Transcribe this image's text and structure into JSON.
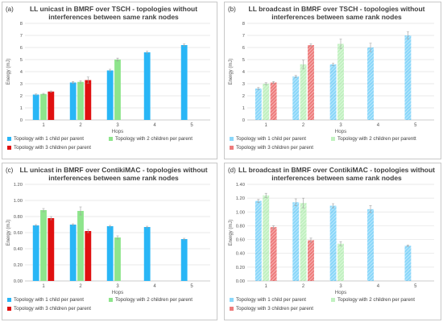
{
  "panels": {
    "a": {
      "tag": "(a)",
      "title": "LL unicast in BMRF over TSCH - topologies without interferences between same rank nodes",
      "legend": [
        "Topology with 1 child per parent",
        "Topology with 2 children per parent",
        "Topology with 3 children per parent"
      ]
    },
    "b": {
      "tag": "(b)",
      "title": "LL broadcast in BMRF over TSCH - topologies without interferences between same rank nodes",
      "legend": [
        "Topology with 1 child per parent",
        "Topology with 2 children per parentt",
        "Topology with 3 children per parent"
      ]
    },
    "c": {
      "tag": "(c)",
      "title": "LL unicast in BMRF over ContikiMAC - topologies without interferences between same rank nodes",
      "legend": [
        "Topology with 1 child per parent",
        "Topology with 2 children per parent",
        "Topology with 3 children per parent"
      ]
    },
    "d": {
      "tag": "(d)",
      "title": "LL broadcast in BMRF over ContikiMAC - topologies without interferences between same rank nodes",
      "legend": [
        "Topology with 1 child per parent",
        "Topology with 2 children per parent",
        "Topology with 3 children per parent"
      ]
    }
  },
  "colors": {
    "series1": "#29b6f6",
    "series2": "#8ee58c",
    "series3": "#e01010"
  },
  "chart_data": [
    {
      "id": "a",
      "type": "bar",
      "style": "solid",
      "categories": [
        "1",
        "2",
        "3",
        "4",
        "5"
      ],
      "xlabel": "Hops",
      "ylabel": "Energy (mJ)",
      "ylim": [
        0,
        8
      ],
      "yticks": [
        "0",
        "1",
        "2",
        "3",
        "4",
        "5",
        "6",
        "7",
        "8"
      ],
      "series": [
        {
          "name": "Topology with 1 child per parent",
          "values": [
            2.1,
            3.1,
            4.1,
            5.6,
            6.2
          ],
          "errors": [
            0.05,
            0.08,
            0.1,
            0.1,
            0.1
          ]
        },
        {
          "name": "Topology with 2 children per parent",
          "values": [
            2.15,
            3.15,
            5.0,
            null,
            null
          ],
          "errors": [
            0.05,
            0.1,
            0.12,
            0,
            0
          ]
        },
        {
          "name": "Topology with 3 children per parent",
          "values": [
            2.35,
            3.3,
            null,
            null,
            null
          ],
          "errors": [
            0.05,
            0.25,
            0,
            0,
            0
          ]
        }
      ]
    },
    {
      "id": "b",
      "type": "bar",
      "style": "hatched",
      "categories": [
        "1",
        "2",
        "3",
        "4",
        "5"
      ],
      "xlabel": "Hops",
      "ylabel": "Energy (mJ)",
      "ylim": [
        0,
        8
      ],
      "yticks": [
        "0",
        "1",
        "2",
        "3",
        "4",
        "5",
        "6",
        "7",
        "8"
      ],
      "series": [
        {
          "name": "Topology with 1 child per parent",
          "values": [
            2.6,
            3.6,
            4.6,
            6.0,
            7.0
          ],
          "errors": [
            0.08,
            0.08,
            0.1,
            0.35,
            0.3
          ]
        },
        {
          "name": "Topology with 2 children per parentt",
          "values": [
            3.0,
            4.6,
            6.3,
            null,
            null
          ],
          "errors": [
            0.08,
            0.35,
            0.4,
            0,
            0
          ]
        },
        {
          "name": "Topology with 3 children per parent",
          "values": [
            3.1,
            6.2,
            null,
            null,
            null
          ],
          "errors": [
            0.08,
            0.1,
            0,
            0,
            0
          ]
        }
      ]
    },
    {
      "id": "c",
      "type": "bar",
      "style": "solid",
      "categories": [
        "1",
        "2",
        "3",
        "4",
        "5"
      ],
      "xlabel": "Hops",
      "ylabel": "Energy (mJ)",
      "ylim": [
        0,
        1.2
      ],
      "yticks": [
        "0.00",
        "0.20",
        "0.40",
        "0.60",
        "0.80",
        "1.00",
        "1.20"
      ],
      "series": [
        {
          "name": "Topology with 1 child per parent",
          "values": [
            0.69,
            0.7,
            0.68,
            0.67,
            0.52
          ],
          "errors": [
            0.01,
            0.01,
            0.01,
            0.01,
            0.01
          ]
        },
        {
          "name": "Topology with 2 children per parent",
          "values": [
            0.88,
            0.87,
            0.54,
            null,
            null
          ],
          "errors": [
            0.02,
            0.05,
            0.02,
            0,
            0
          ]
        },
        {
          "name": "Topology with 3 children per parent",
          "values": [
            0.78,
            0.62,
            null,
            null,
            null
          ],
          "errors": [
            0.02,
            0.02,
            0,
            0,
            0
          ]
        }
      ]
    },
    {
      "id": "d",
      "type": "bar",
      "style": "hatched",
      "categories": [
        "1",
        "2",
        "3",
        "4",
        "5"
      ],
      "xlabel": "Hops",
      "ylabel": "Energy (mJ)",
      "ylim": [
        0,
        1.4
      ],
      "yticks": [
        "0.00",
        "0.20",
        "0.40",
        "0.60",
        "0.80",
        "1.00",
        "1.20",
        "1.40"
      ],
      "series": [
        {
          "name": "Topology with 1 child per parent",
          "values": [
            1.16,
            1.14,
            1.09,
            1.04,
            0.51
          ],
          "errors": [
            0.02,
            0.05,
            0.03,
            0.05,
            0.01
          ]
        },
        {
          "name": "Topology with 2 children per parent",
          "values": [
            1.24,
            1.13,
            0.54,
            null,
            null
          ],
          "errors": [
            0.03,
            0.07,
            0.03,
            0,
            0
          ]
        },
        {
          "name": "Topology with 3 children per parent",
          "values": [
            0.78,
            0.59,
            null,
            null,
            null
          ],
          "errors": [
            0.02,
            0.03,
            0,
            0,
            0
          ]
        }
      ]
    }
  ]
}
